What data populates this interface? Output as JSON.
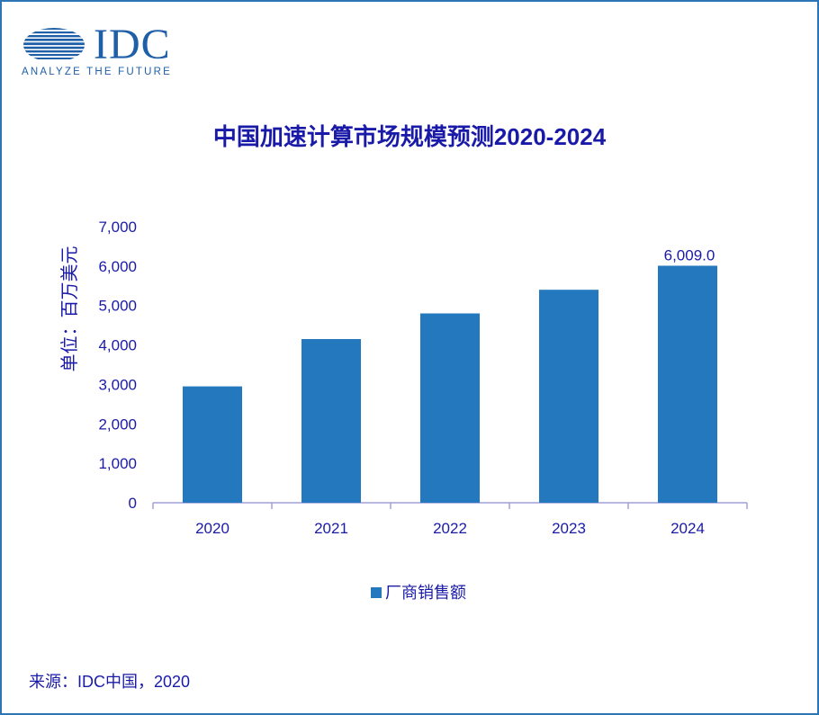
{
  "logo": {
    "wordmark": "IDC",
    "tagline": "ANALYZE THE FUTURE"
  },
  "colors": {
    "bar": "#2478bd",
    "text": "#1a1aa8",
    "axis": "#a0a0d8",
    "frame": "#2e75b6"
  },
  "source": "来源：IDC中国，2020",
  "chart_data": {
    "type": "bar",
    "title": "中国加速计算市场规模预测2020-2024",
    "xlabel": "",
    "ylabel": "单位：百万美元",
    "categories": [
      "2020",
      "2021",
      "2022",
      "2023",
      "2024"
    ],
    "series": [
      {
        "name": "厂商销售额",
        "values": [
          2950,
          4150,
          4800,
          5400,
          6009.0
        ]
      }
    ],
    "data_labels": [
      {
        "category": "2024",
        "text": "6,009.0"
      }
    ],
    "ylim": [
      0,
      7000
    ],
    "yticks": [
      0,
      1000,
      2000,
      3000,
      4000,
      5000,
      6000,
      7000
    ],
    "ytick_labels": [
      "0",
      "1,000",
      "2,000",
      "3,000",
      "4,000",
      "5,000",
      "6,000",
      "7,000"
    ],
    "grid": false,
    "legend": "bottom-center"
  }
}
